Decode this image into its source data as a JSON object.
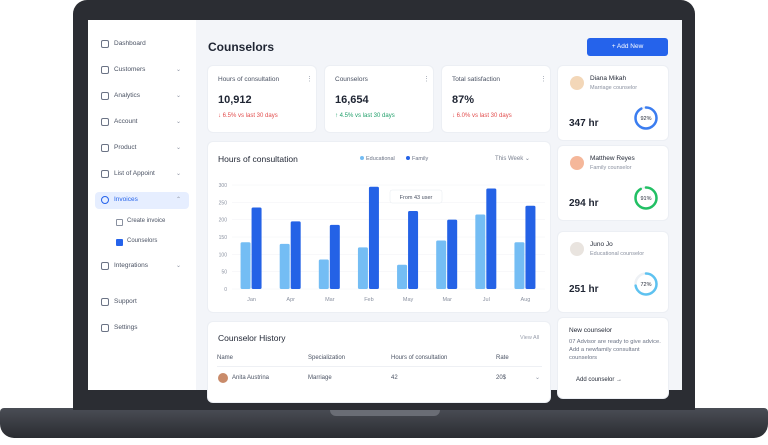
{
  "sidebar": {
    "items": [
      "Dashboard",
      "Customers",
      "Analytics",
      "Account",
      "Product",
      "List of Appoint",
      "Invoices",
      "Integrations",
      "Support",
      "Settings"
    ],
    "subitems": [
      "Create invoice",
      "Counselors"
    ]
  },
  "header": {
    "title": "Counselors",
    "button": "+ Add New"
  },
  "stats": [
    {
      "title": "Hours of consultation",
      "value": "10,912",
      "change": "↓ 6.5% vs last 30 days"
    },
    {
      "title": "Counselors",
      "value": "16,654",
      "change": "↑ 4.5% vs last 30 days"
    },
    {
      "title": "Total satisfaction",
      "value": "87%",
      "change": "↓ 6.0% vs last 30 days"
    }
  ],
  "chart": {
    "type": "bar",
    "title": "Hours of consultation",
    "period": "This Week",
    "annotation": "From 43 user",
    "categories": [
      "Jan",
      "Apr",
      "Mar",
      "Feb",
      "May",
      "Mar",
      "Jul",
      "Aug"
    ],
    "series": [
      {
        "name": "Educational",
        "color": "#74bdf4",
        "values": [
          135,
          130,
          85,
          120,
          70,
          140,
          215,
          135
        ]
      },
      {
        "name": "Family",
        "color": "#2462e6",
        "values": [
          235,
          195,
          185,
          295,
          225,
          200,
          290,
          240
        ]
      }
    ],
    "ylim": [
      0,
      300
    ],
    "yticks": [
      0,
      50,
      100,
      150,
      200,
      250,
      300
    ]
  },
  "history": {
    "title": "Counselor History",
    "link": "View All",
    "columns": [
      "Name",
      "Specialization",
      "Hours of consultation",
      "Rate"
    ],
    "rows": [
      [
        "Anita Austrina",
        "Marriage",
        "42",
        "20$"
      ]
    ]
  },
  "counselors": [
    {
      "name": "Diana Mikah",
      "role": "Marriage counselor",
      "hours": "347 hr",
      "rate": {
        "value": 92,
        "label": "92%"
      },
      "color": "#3b7df0"
    },
    {
      "name": "Matthew Reyes",
      "role": "Family counselor",
      "hours": "294 hr",
      "rate": {
        "value": 91,
        "label": "91%"
      },
      "color": "#22c064"
    },
    {
      "name": "Juno Jo",
      "role": "Educational counselor",
      "hours": "251 hr",
      "rate": {
        "value": 72,
        "label": "72%"
      },
      "color": "#5ec2f0"
    }
  ],
  "new_counselor": {
    "title": "New counselor",
    "text": "07 Advisor are ready to give advice. Add a newfamily consultant counselors",
    "link": "Add counselor →"
  }
}
